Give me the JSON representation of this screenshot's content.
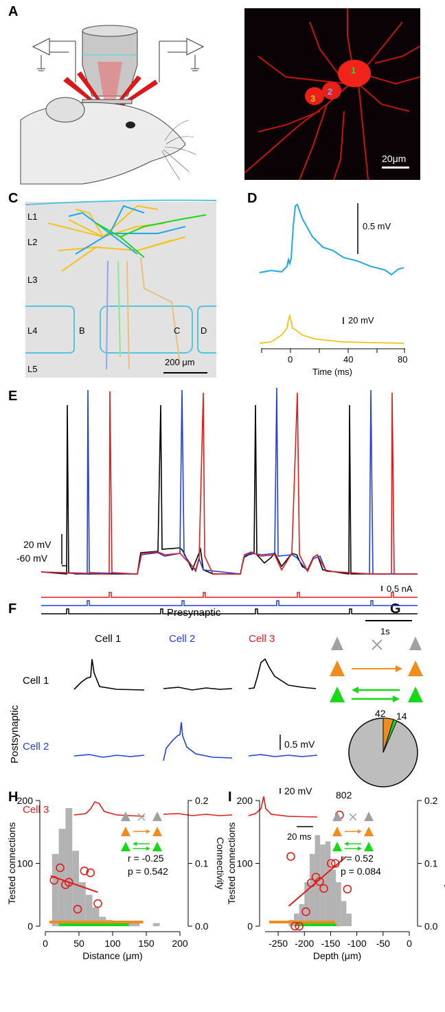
{
  "panels": {
    "a": "A",
    "b": "B",
    "c": "C",
    "d": "D",
    "e": "E",
    "f": "F",
    "g": "G",
    "h": "H",
    "i": "I"
  },
  "panel_b": {
    "cell_labels": [
      "1",
      "2",
      "3"
    ],
    "scale": "20μm"
  },
  "panel_c": {
    "layers": [
      "L1",
      "L2",
      "L3",
      "L4",
      "L5"
    ],
    "barrels": [
      "B",
      "C",
      "D"
    ],
    "scale": "200 μm"
  },
  "panel_d": {
    "scale_top": "0.5 mV",
    "scale_bottom": "20 mV",
    "xlabel": "Time (ms)",
    "ticks": [
      "0",
      "40",
      "80"
    ]
  },
  "panel_e": {
    "scale_v": "20 mV",
    "baseline": "-60 mV",
    "scale_i": "0.5 nA",
    "scale_t": "1s"
  },
  "panel_f": {
    "presynaptic": "Presynaptic",
    "postsynaptic": "Postsynaptic",
    "cols": [
      "Cell 1",
      "Cell 2",
      "Cell 3"
    ],
    "rows": [
      "Cell 1",
      "Cell 2",
      "Cell 3"
    ],
    "scale_mv": "0.5 mV",
    "scale_spike": "20 mV",
    "scale_t": "20 ms"
  },
  "panel_g": {
    "pie_labels": {
      "orange": "42",
      "green": "14",
      "gray": "802"
    }
  },
  "colors": {
    "cell1": "#000000",
    "cell2": "#1f3fe0",
    "cell3": "#e21b1b",
    "cyan": "#22a7e6",
    "yellow": "#f5c218",
    "green": "#17d817",
    "orange": "#f08c1e",
    "gray": "#a0a0a0",
    "histgray": "#b3b3b3"
  },
  "chart_data": [
    {
      "type": "bar",
      "panel": "H",
      "xlabel": "Distance (μm)",
      "ylabel": "Tested connections",
      "y2label": "Connectivity",
      "xlim": [
        0,
        200
      ],
      "ylim": [
        0,
        200
      ],
      "y2lim": [
        0,
        0.2
      ],
      "xticks": [
        "0",
        "50",
        "100",
        "150",
        "200"
      ],
      "yticks": [
        "0",
        "100",
        "200"
      ],
      "y2ticks": [
        "0.0",
        "0.1",
        "0.2"
      ],
      "bins": [
        [
          10,
          20,
          115
        ],
        [
          20,
          30,
          155
        ],
        [
          30,
          40,
          188
        ],
        [
          40,
          50,
          120
        ],
        [
          50,
          60,
          70
        ],
        [
          60,
          70,
          50
        ],
        [
          70,
          80,
          30
        ],
        [
          80,
          90,
          15
        ],
        [
          90,
          100,
          10
        ],
        [
          100,
          140,
          5
        ],
        [
          160,
          170,
          5
        ]
      ],
      "connectivity_points": [
        [
          13,
          0.073
        ],
        [
          22,
          0.093
        ],
        [
          30,
          0.066
        ],
        [
          35,
          0.07
        ],
        [
          48,
          0.027
        ],
        [
          58,
          0.088
        ],
        [
          67,
          0.085
        ],
        [
          78,
          0.036
        ]
      ],
      "fit": {
        "x": [
          8,
          78
        ],
        "y": [
          0.08,
          0.054
        ]
      },
      "annotation": {
        "r": "r = -0.25",
        "p": "p = 0.542"
      }
    },
    {
      "type": "bar",
      "panel": "I",
      "xlabel": "Depth (μm)",
      "ylabel": "Tested connections",
      "y2label": "Connectivity",
      "xlim": [
        -275,
        0
      ],
      "ylim": [
        0,
        200
      ],
      "y2lim": [
        0,
        0.2
      ],
      "xticks": [
        "-250",
        "-200",
        "-150",
        "-100",
        "-50",
        "0"
      ],
      "yticks": [
        "0",
        "100",
        "200"
      ],
      "y2ticks": [
        "0.0",
        "0.1",
        "0.2"
      ],
      "bins": [
        [
          -230,
          -220,
          10
        ],
        [
          -220,
          -210,
          20
        ],
        [
          -210,
          -200,
          35
        ],
        [
          -200,
          -190,
          70
        ],
        [
          -190,
          -180,
          115
        ],
        [
          -180,
          -170,
          145
        ],
        [
          -170,
          -160,
          130
        ],
        [
          -160,
          -150,
          135
        ],
        [
          -150,
          -140,
          90
        ],
        [
          -140,
          -130,
          70
        ],
        [
          -130,
          -120,
          40
        ],
        [
          -120,
          -110,
          20
        ]
      ],
      "connectivity_points": [
        [
          -226,
          0.111
        ],
        [
          -218,
          0.0
        ],
        [
          -210,
          0.0
        ],
        [
          -197,
          0.023
        ],
        [
          -187,
          0.069
        ],
        [
          -178,
          0.078
        ],
        [
          -171,
          0.071
        ],
        [
          -163,
          0.06
        ],
        [
          -149,
          0.1
        ],
        [
          -141,
          0.1
        ],
        [
          -133,
          0.177
        ],
        [
          -118,
          0.059
        ]
      ],
      "fit": {
        "x": [
          -230,
          -120
        ],
        "y": [
          0.032,
          0.111
        ]
      },
      "annotation": {
        "r": "r = 0.52",
        "p": "p = 0.084"
      }
    }
  ]
}
